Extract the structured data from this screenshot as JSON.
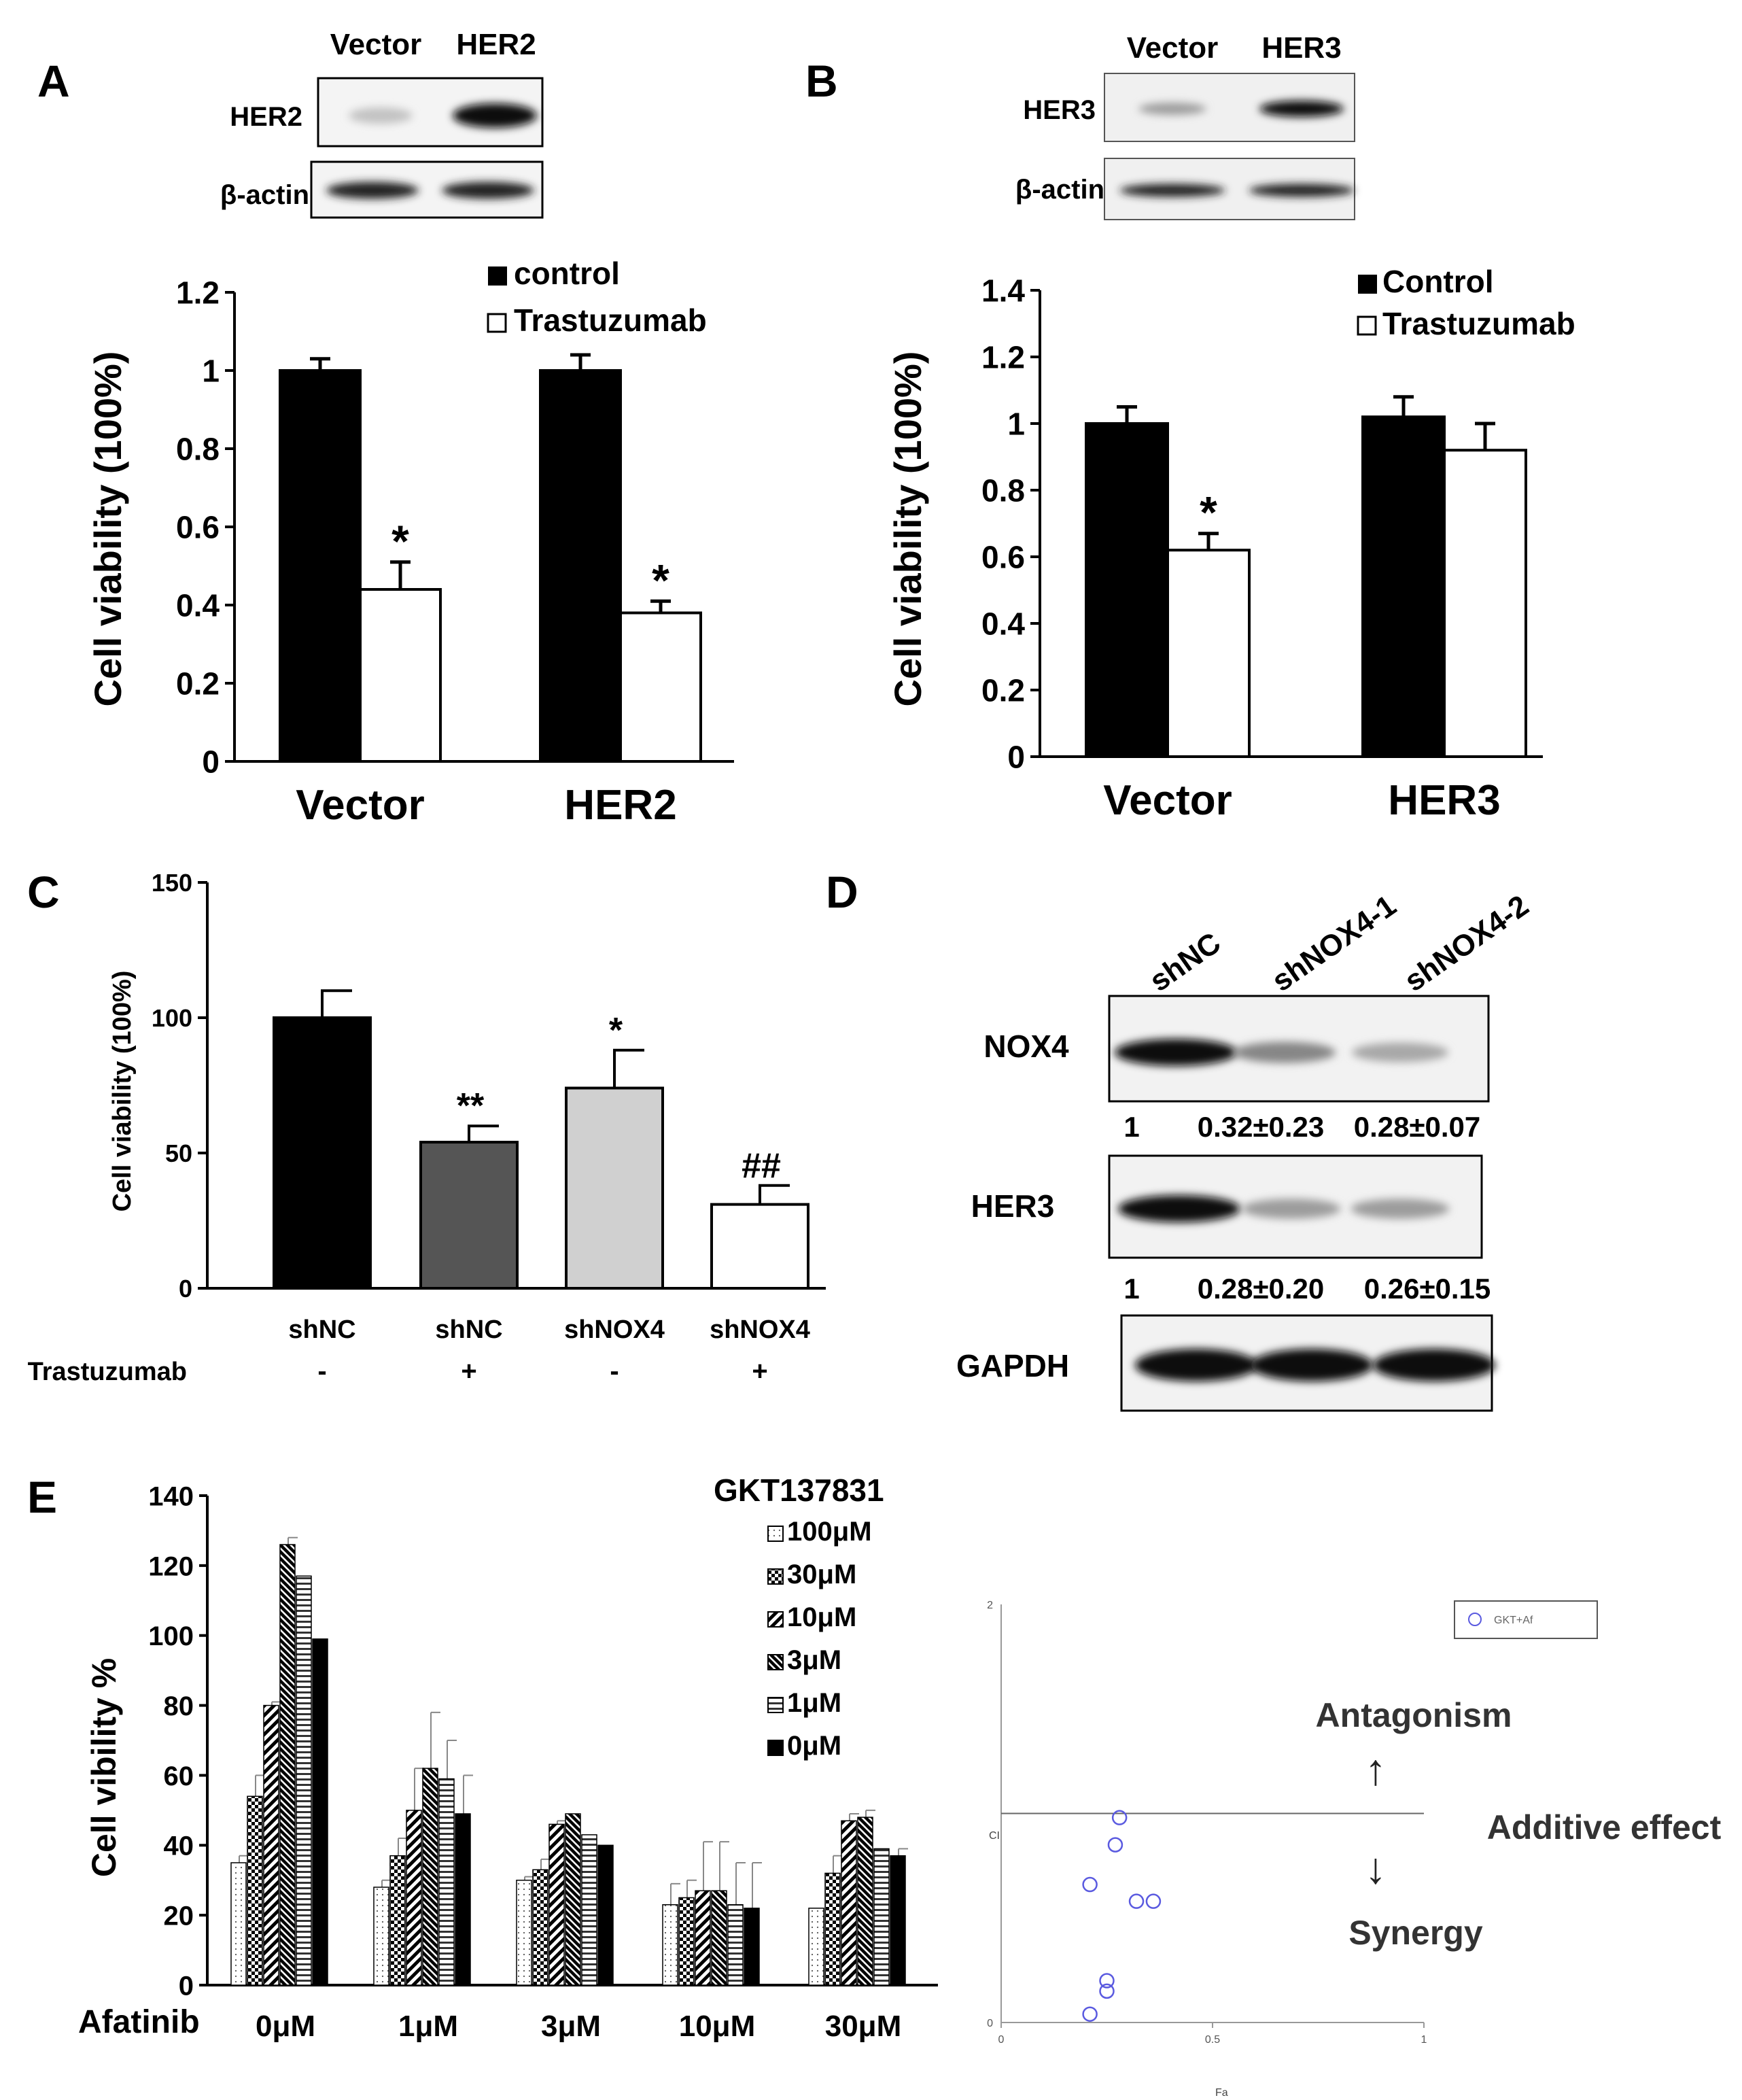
{
  "figure_title": "",
  "blots": {
    "A": {
      "headers": [
        "Vector",
        "HER2"
      ],
      "rows": [
        {
          "label": "HER2",
          "intensity": [
            0.18,
            1.0
          ]
        },
        {
          "label": "β-actin",
          "intensity": [
            0.9,
            0.9
          ]
        }
      ]
    },
    "B": {
      "headers": [
        "Vector",
        "HER3"
      ],
      "rows": [
        {
          "label": "HER3",
          "intensity": [
            0.35,
            1.0
          ]
        },
        {
          "label": "β-actin",
          "intensity": [
            0.9,
            0.9
          ]
        }
      ]
    },
    "D": {
      "headers": [
        "shNC",
        "shNOX4-1",
        "shNOX4-2"
      ],
      "rows": [
        {
          "label": "NOX4",
          "intensity": [
            1.0,
            0.45,
            0.3
          ],
          "quant": [
            "1",
            "0.32±0.23",
            "0.28±0.07"
          ]
        },
        {
          "label": "HER3",
          "intensity": [
            1.0,
            0.35,
            0.35
          ],
          "quant": [
            "1",
            "0.28±0.20",
            "0.26±0.15"
          ]
        },
        {
          "label": "GAPDH",
          "intensity": [
            1.0,
            1.0,
            1.0
          ],
          "quant": []
        }
      ]
    }
  },
  "chart_data": [
    {
      "panel": "A",
      "type": "bar",
      "categories": [
        "Vector",
        "HER2"
      ],
      "series": [
        {
          "name": "control",
          "color": "#000000",
          "values": [
            1.0,
            1.0
          ],
          "errors": [
            0.03,
            0.04
          ],
          "marks": [
            "",
            ""
          ]
        },
        {
          "name": "Trastuzumab",
          "color": "#ffffff",
          "values": [
            0.44,
            0.38
          ],
          "errors": [
            0.07,
            0.03
          ],
          "marks": [
            "*",
            "*"
          ]
        }
      ],
      "ylabel": "Cell viability (100%)",
      "ylim": [
        0,
        1.2
      ],
      "yticks": [
        0,
        0.2,
        0.4,
        0.6,
        0.8,
        1,
        1.2
      ],
      "ytick_labels": [
        "0",
        "0.2",
        "0.4",
        "0.6",
        "0.8",
        "1",
        "1.2"
      ]
    },
    {
      "panel": "B",
      "type": "bar",
      "categories": [
        "Vector",
        "HER3"
      ],
      "series": [
        {
          "name": "Control",
          "color": "#000000",
          "values": [
            1.0,
            1.02
          ],
          "errors": [
            0.05,
            0.06
          ],
          "marks": [
            "",
            ""
          ]
        },
        {
          "name": "Trastuzumab",
          "color": "#ffffff",
          "values": [
            0.62,
            0.92
          ],
          "errors": [
            0.05,
            0.08
          ],
          "marks": [
            "*",
            ""
          ]
        }
      ],
      "ylabel": "Cell viability (100%)",
      "ylim": [
        0,
        1.4
      ],
      "yticks": [
        0,
        0.2,
        0.4,
        0.6,
        0.8,
        1,
        1.2,
        1.4
      ],
      "ytick_labels": [
        "0",
        "0.2",
        "0.4",
        "0.6",
        "0.8",
        "1",
        "1.2",
        "1.4"
      ]
    },
    {
      "panel": "C",
      "type": "bar",
      "categories": [
        "shNC",
        "shNC",
        "shNOX4",
        "shNOX4"
      ],
      "row_label": "Trastuzumab",
      "treatment": [
        "-",
        "+",
        "-",
        "+"
      ],
      "values": [
        100,
        54,
        74,
        31
      ],
      "errors": [
        10,
        6,
        14,
        7
      ],
      "colors": [
        "#000000",
        "#555555",
        "#d0d0d0",
        "#ffffff"
      ],
      "marks": [
        "",
        "**",
        "*",
        "##"
      ],
      "ylabel": "Cell viability (100%)",
      "ylim": [
        0,
        150
      ],
      "yticks": [
        0,
        50,
        100,
        150
      ],
      "ytick_labels": [
        "0",
        "50",
        "100",
        "150"
      ]
    },
    {
      "panel": "E",
      "type": "bar",
      "title": "GKT137831",
      "xlabel": "Afatinib",
      "categories": [
        "0μM",
        "1μM",
        "3μM",
        "10μM",
        "30μM"
      ],
      "series": [
        {
          "name": "100μM",
          "pattern": "dots",
          "values": [
            35,
            28,
            30,
            23,
            22
          ],
          "errors": [
            2,
            2,
            1,
            6,
            0
          ]
        },
        {
          "name": "30μM",
          "pattern": "check",
          "values": [
            54,
            37,
            33,
            25,
            32
          ],
          "errors": [
            6,
            5,
            3,
            5,
            5
          ]
        },
        {
          "name": "10μM",
          "pattern": "diag",
          "values": [
            80,
            50,
            46,
            27,
            47
          ],
          "errors": [
            1,
            12,
            1,
            14,
            2
          ]
        },
        {
          "name": "3μM",
          "pattern": "diagdense",
          "values": [
            126,
            62,
            49,
            27,
            48
          ],
          "errors": [
            2,
            16,
            0,
            14,
            2
          ]
        },
        {
          "name": "1μM",
          "pattern": "hlines",
          "values": [
            117,
            59,
            43,
            23,
            39
          ],
          "errors": [
            0,
            11,
            0,
            12,
            0
          ]
        },
        {
          "name": "0μM",
          "pattern": "solid",
          "values": [
            99,
            49,
            40,
            22,
            37
          ],
          "errors": [
            0,
            11,
            0,
            13,
            2
          ]
        }
      ],
      "ylabel": "Cell vibility %",
      "ylim": [
        0,
        140
      ],
      "yticks": [
        0,
        20,
        40,
        60,
        80,
        100,
        120,
        140
      ],
      "ytick_labels": [
        "0",
        "20",
        "40",
        "60",
        "80",
        "100",
        "120",
        "140"
      ]
    },
    {
      "panel": "E2",
      "type": "scatter",
      "legend": "GKT+Af",
      "xlabel": "Fa",
      "ylabel": "CI",
      "xlim": [
        0,
        1
      ],
      "ylim": [
        0,
        2
      ],
      "xticks": [
        0,
        0.5,
        1
      ],
      "xtick_labels": [
        "0",
        "0.5",
        "1"
      ],
      "yticks": [
        0,
        2
      ],
      "ytick_labels": [
        "0",
        "2"
      ],
      "reference_line": 1.0,
      "points": [
        {
          "x": 0.28,
          "y": 0.98
        },
        {
          "x": 0.27,
          "y": 0.85
        },
        {
          "x": 0.21,
          "y": 0.66
        },
        {
          "x": 0.32,
          "y": 0.58
        },
        {
          "x": 0.36,
          "y": 0.58
        },
        {
          "x": 0.25,
          "y": 0.2
        },
        {
          "x": 0.25,
          "y": 0.15
        },
        {
          "x": 0.21,
          "y": 0.04
        }
      ],
      "annotations": [
        "Antagonism",
        "Additive effect",
        "Synergy"
      ],
      "arrows": [
        "↑",
        "↓"
      ]
    }
  ]
}
